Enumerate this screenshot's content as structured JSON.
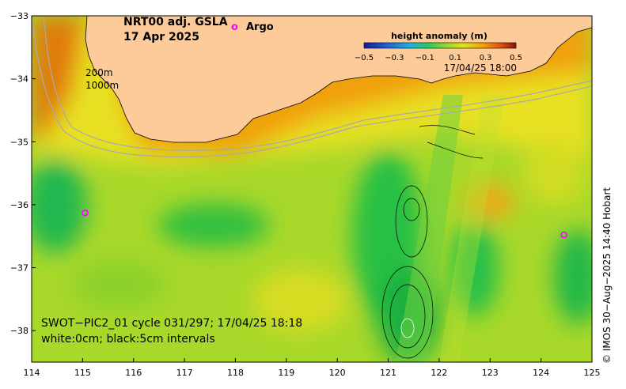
{
  "title": {
    "line1": "NRT00 adj. GSLA",
    "line2": "17 Apr 2025"
  },
  "legend": {
    "argo_marker": "o",
    "argo_label": "Argo",
    "argo_color": "#ff00ff"
  },
  "colorbar": {
    "title": "height anomaly (m)",
    "ticks": [
      "−0.5",
      "−0.3",
      "−0.1",
      "0.1",
      "0.3",
      "0.5"
    ],
    "range": [
      -0.5,
      0.5
    ],
    "timestamp": "17/04/25 18:00"
  },
  "contour_labels": {
    "c200": "200m",
    "c1000": "1000m"
  },
  "swot_caption": {
    "line1": "SWOT−PIC2_01 cycle 031/297; 17/04/25 18:18",
    "line2": "white:0cm; black:5cm intervals"
  },
  "credit": "© IMOS 30−Aug−2025 14:40 Hobart",
  "axes": {
    "x_ticks": [
      "114",
      "115",
      "116",
      "117",
      "118",
      "119",
      "120",
      "121",
      "122",
      "123",
      "124",
      "125"
    ],
    "y_ticks": [
      "−33",
      "−34",
      "−35",
      "−36",
      "−37",
      "−38"
    ]
  },
  "argo_floats": [
    {
      "lon": 115.05,
      "lat": -36.13
    },
    {
      "lon": 124.45,
      "lat": -36.48
    }
  ],
  "colors": {
    "land": "#fdcb9a",
    "ocean_base": "#7ed321",
    "orange": "#f39c12",
    "yellow_green": "#c6e020",
    "green": "#22c040"
  }
}
